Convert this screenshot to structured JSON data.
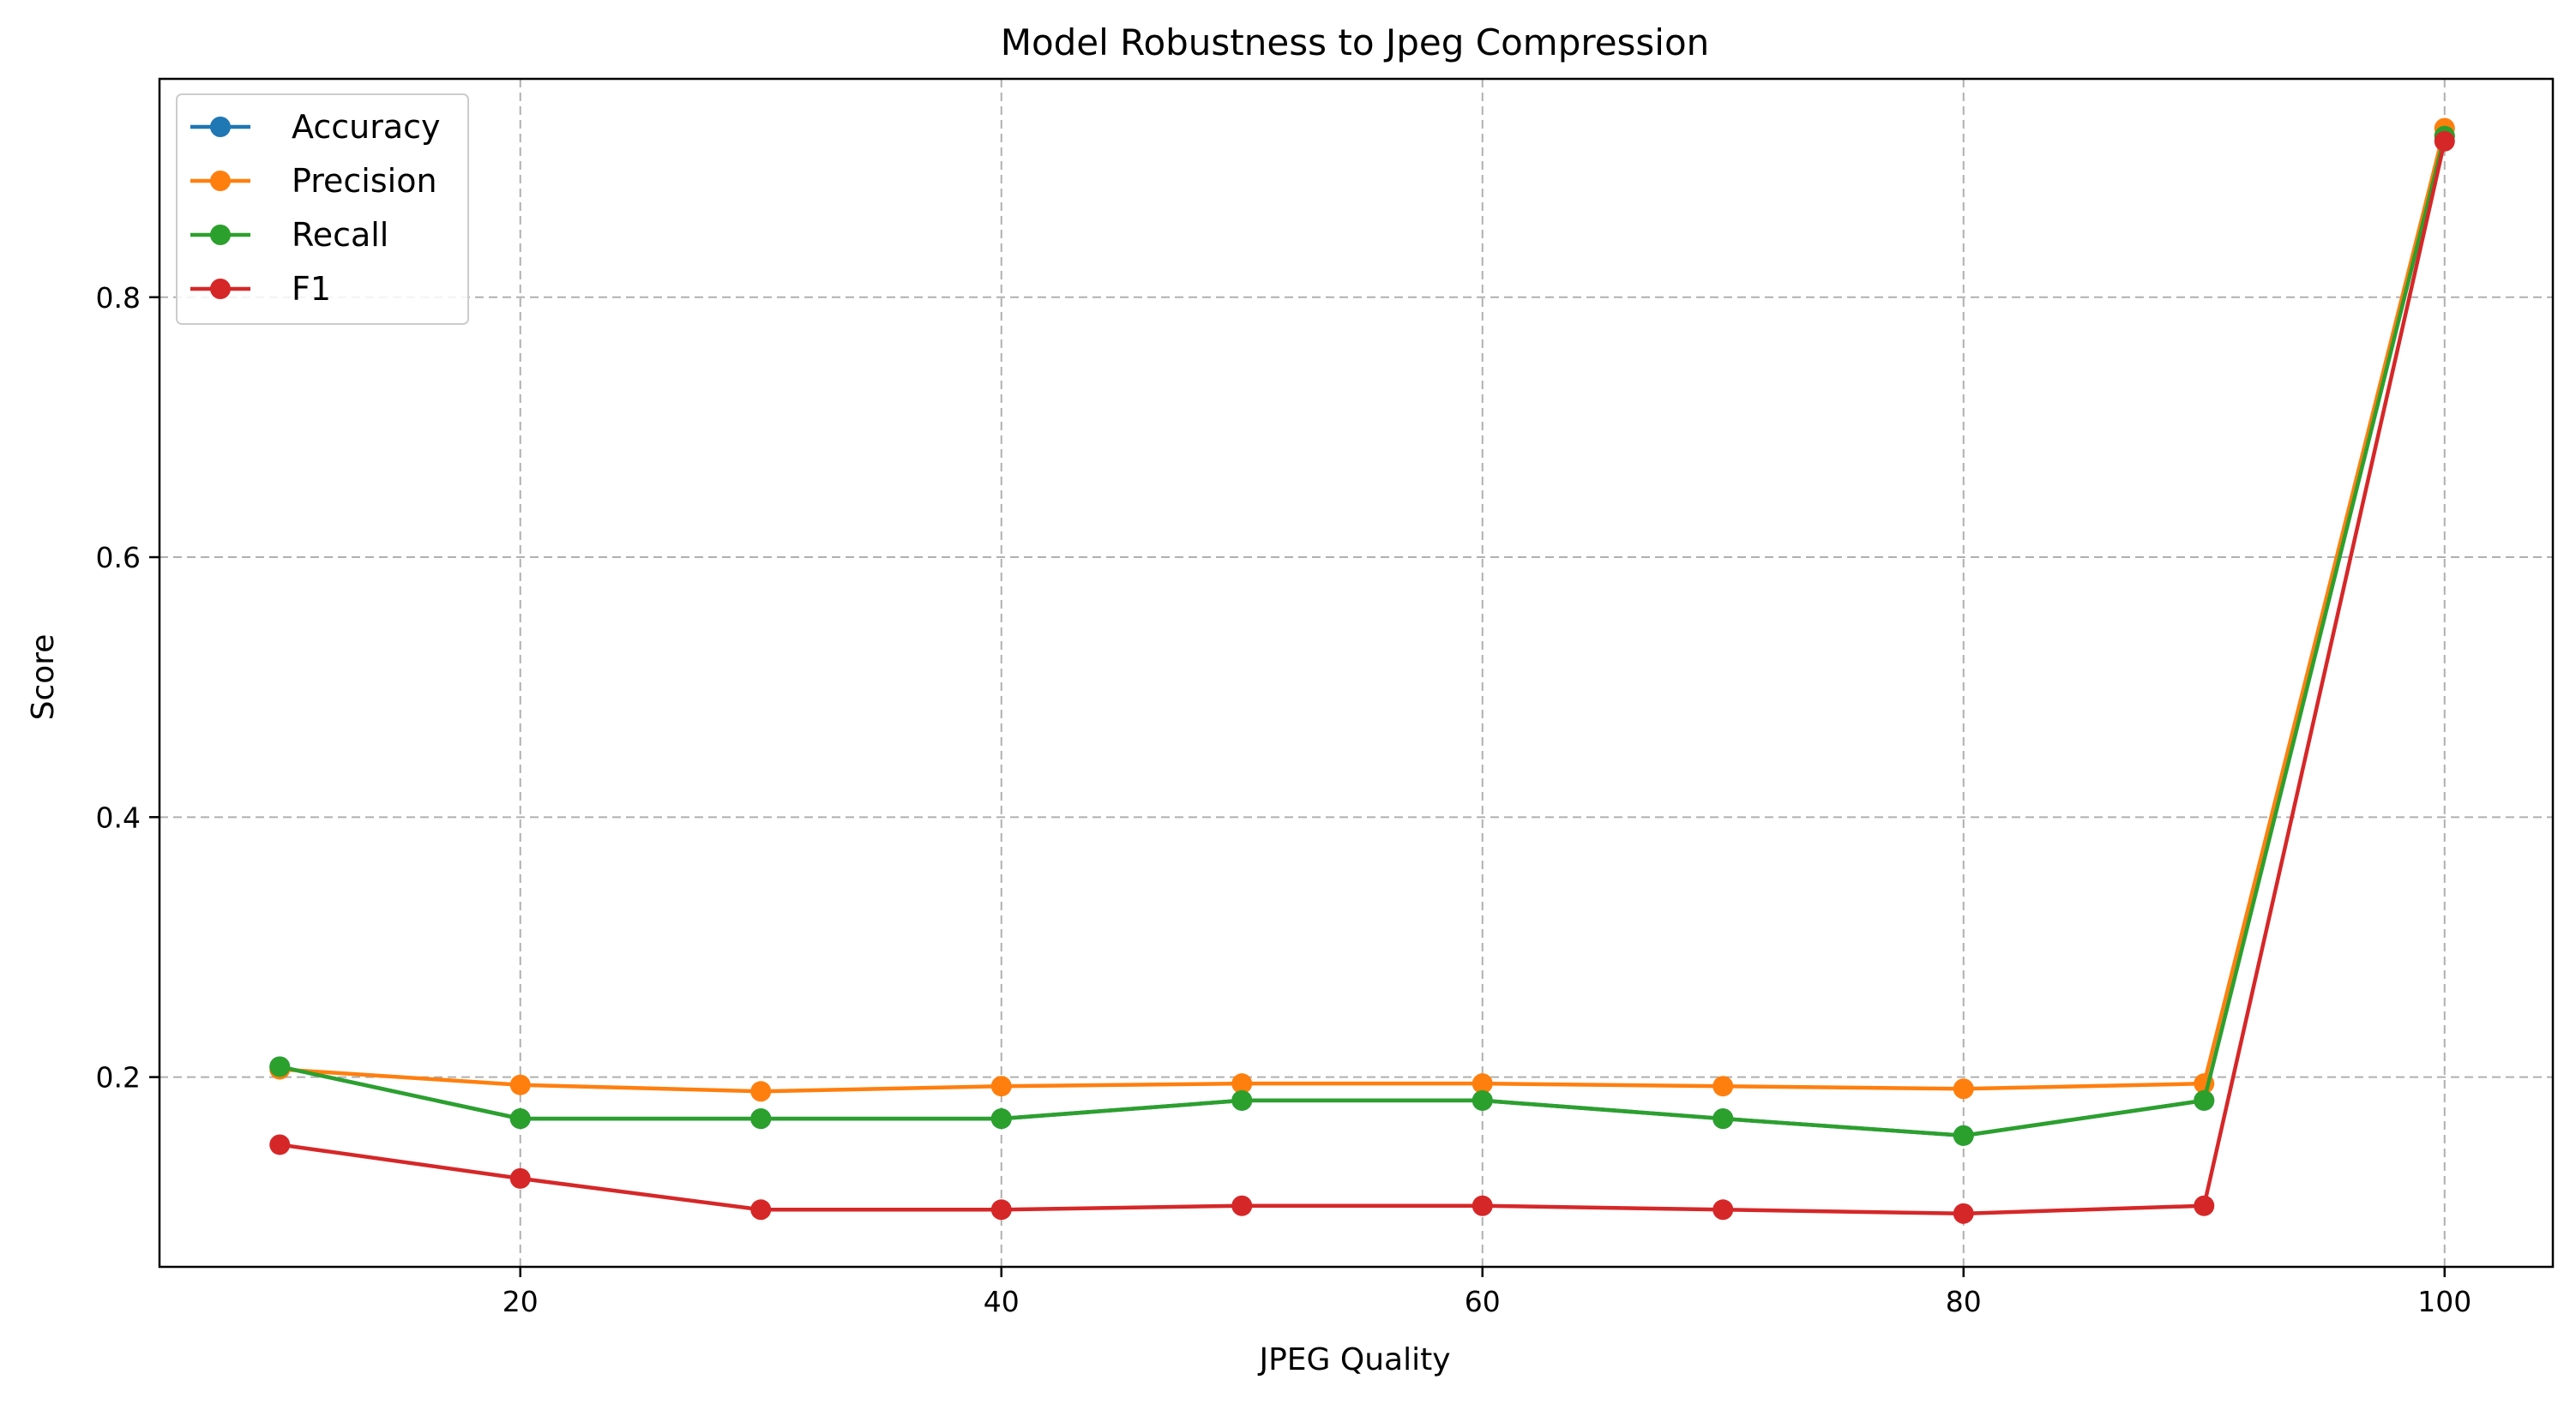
{
  "chart_data": {
    "type": "line",
    "title": "Model Robustness to Jpeg Compression",
    "xlabel": "JPEG Quality",
    "ylabel": "Score",
    "x": [
      10,
      20,
      30,
      40,
      50,
      60,
      70,
      80,
      90,
      100
    ],
    "xlim": [
      5,
      104.5
    ],
    "ylim": [
      0.054,
      0.968
    ],
    "xticks": [
      20,
      40,
      60,
      80,
      100
    ],
    "yticks": [
      0.2,
      0.4,
      0.6,
      0.8
    ],
    "grid": true,
    "legend_position": "upper-left",
    "series": [
      {
        "name": "Accuracy",
        "color": "#1f77b4",
        "values": [
          0.208,
          0.168,
          0.168,
          0.168,
          0.182,
          0.182,
          0.168,
          0.155,
          0.182,
          0.924
        ]
      },
      {
        "name": "Precision",
        "color": "#ff7f0e",
        "values": [
          0.206,
          0.194,
          0.189,
          0.193,
          0.195,
          0.195,
          0.193,
          0.191,
          0.195,
          0.93
        ]
      },
      {
        "name": "Recall",
        "color": "#2ca02c",
        "values": [
          0.208,
          0.168,
          0.168,
          0.168,
          0.182,
          0.182,
          0.168,
          0.155,
          0.182,
          0.924
        ]
      },
      {
        "name": "F1",
        "color": "#d62728",
        "values": [
          0.148,
          0.122,
          0.098,
          0.098,
          0.101,
          0.101,
          0.098,
          0.095,
          0.101,
          0.92
        ]
      }
    ]
  }
}
